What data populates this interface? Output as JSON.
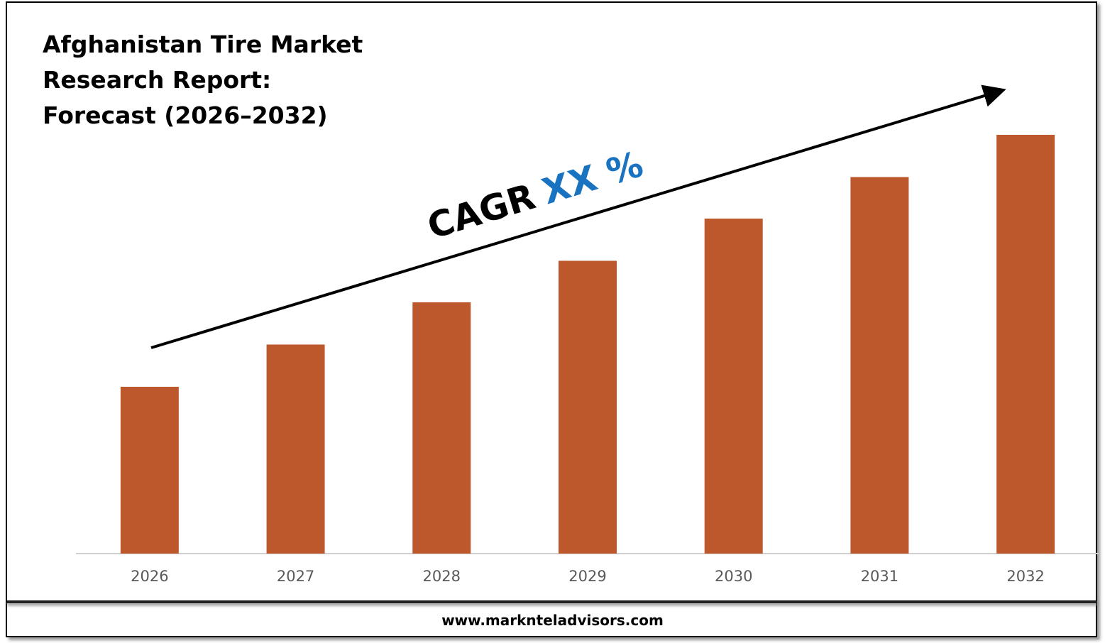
{
  "chart_data": {
    "type": "bar",
    "title": "Afghanistan Tire Market Research Report: Forecast (2026–2032)",
    "annotation": {
      "label": "CAGR",
      "value": "XX %"
    },
    "source": "www.marknteladvisors.com",
    "categories": [
      "2026",
      "2027",
      "2028",
      "2029",
      "2030",
      "2031",
      "2032"
    ],
    "values": [
      237,
      297,
      357,
      416,
      476,
      535,
      595
    ],
    "color": "#bc582c",
    "ylim": [
      0,
      600
    ]
  }
}
